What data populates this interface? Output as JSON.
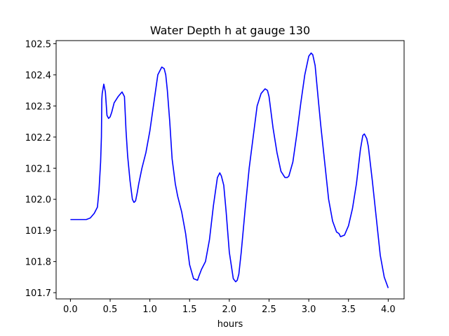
{
  "chart_data": {
    "type": "line",
    "title": "Water Depth h at gauge 130",
    "xlabel": "hours",
    "ylabel": "",
    "xlim": [
      -0.18,
      4.2
    ],
    "ylim": [
      101.68,
      102.51
    ],
    "x_ticks": [
      0.0,
      0.5,
      1.0,
      1.5,
      2.0,
      2.5,
      3.0,
      3.5,
      4.0
    ],
    "x_tick_labels": [
      "0.0",
      "0.5",
      "1.0",
      "1.5",
      "2.0",
      "2.5",
      "3.0",
      "3.5",
      "4.0"
    ],
    "y_ticks": [
      101.7,
      101.8,
      101.9,
      102.0,
      102.1,
      102.2,
      102.3,
      102.4,
      102.5
    ],
    "y_tick_labels": [
      "101.7",
      "101.8",
      "101.9",
      "102.0",
      "102.1",
      "102.2",
      "102.3",
      "102.4",
      "102.5"
    ],
    "grid": false,
    "series": [
      {
        "color": "#0000ff",
        "x": [
          0.0,
          0.1,
          0.2,
          0.25,
          0.3,
          0.34,
          0.36,
          0.38,
          0.39,
          0.395,
          0.4,
          0.42,
          0.44,
          0.46,
          0.48,
          0.5,
          0.52,
          0.55,
          0.6,
          0.65,
          0.68,
          0.7,
          0.72,
          0.75,
          0.78,
          0.8,
          0.82,
          0.84,
          0.86,
          0.9,
          0.95,
          1.0,
          1.05,
          1.1,
          1.15,
          1.18,
          1.2,
          1.22,
          1.25,
          1.28,
          1.32,
          1.35,
          1.4,
          1.45,
          1.5,
          1.55,
          1.6,
          1.62,
          1.65,
          1.7,
          1.75,
          1.8,
          1.85,
          1.88,
          1.9,
          1.93,
          1.96,
          2.0,
          2.05,
          2.08,
          2.1,
          2.12,
          2.15,
          2.2,
          2.25,
          2.3,
          2.35,
          2.4,
          2.45,
          2.48,
          2.5,
          2.53,
          2.55,
          2.6,
          2.65,
          2.7,
          2.73,
          2.75,
          2.8,
          2.85,
          2.9,
          2.95,
          3.0,
          3.03,
          3.05,
          3.08,
          3.12,
          3.15,
          3.2,
          3.25,
          3.3,
          3.35,
          3.38,
          3.4,
          3.45,
          3.5,
          3.55,
          3.6,
          3.65,
          3.68,
          3.7,
          3.73,
          3.75,
          3.8,
          3.85,
          3.9,
          3.95,
          4.0
        ],
        "values": [
          101.935,
          101.935,
          101.935,
          101.94,
          101.955,
          101.975,
          102.03,
          102.12,
          102.2,
          102.32,
          102.34,
          102.37,
          102.345,
          102.27,
          102.26,
          102.265,
          102.28,
          102.31,
          102.33,
          102.345,
          102.33,
          102.22,
          102.14,
          102.06,
          102.0,
          101.99,
          101.995,
          102.02,
          102.05,
          102.1,
          102.15,
          102.22,
          102.31,
          102.4,
          102.425,
          102.42,
          102.4,
          102.35,
          102.25,
          102.13,
          102.05,
          102.01,
          101.96,
          101.89,
          101.79,
          101.745,
          101.74,
          101.755,
          101.775,
          101.8,
          101.87,
          101.98,
          102.07,
          102.085,
          102.075,
          102.045,
          101.96,
          101.83,
          101.745,
          101.735,
          101.74,
          101.76,
          101.83,
          101.97,
          102.1,
          102.2,
          102.3,
          102.34,
          102.355,
          102.35,
          102.33,
          102.27,
          102.23,
          102.15,
          102.09,
          102.07,
          102.07,
          102.075,
          102.12,
          102.21,
          102.31,
          102.4,
          102.46,
          102.47,
          102.465,
          102.43,
          102.32,
          102.24,
          102.12,
          102.0,
          101.93,
          101.895,
          101.89,
          101.88,
          101.885,
          101.915,
          101.97,
          102.05,
          102.16,
          102.205,
          102.21,
          102.195,
          102.17,
          102.06,
          101.94,
          101.82,
          101.75,
          101.715
        ]
      }
    ]
  }
}
